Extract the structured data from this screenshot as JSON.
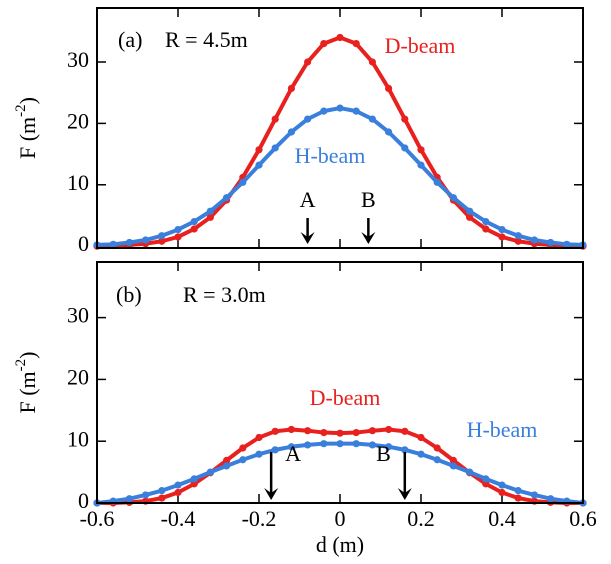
{
  "chart_data": [
    {
      "type": "line",
      "panel": "(a)",
      "annotation": "R = 4.5m",
      "x": [
        -0.6,
        -0.56,
        -0.52,
        -0.48,
        -0.44,
        -0.4,
        -0.36,
        -0.32,
        -0.28,
        -0.24,
        -0.2,
        -0.16,
        -0.12,
        -0.08,
        -0.04,
        0,
        0.04,
        0.08,
        0.12,
        0.16,
        0.2,
        0.24,
        0.28,
        0.32,
        0.36,
        0.4,
        0.44,
        0.48,
        0.52,
        0.56,
        0.6
      ],
      "series": [
        {
          "name": "D-beam",
          "color": "#e8201e",
          "values": [
            0.0,
            0.1,
            0.2,
            0.4,
            0.8,
            1.5,
            2.8,
            4.7,
            7.5,
            11.2,
            15.7,
            20.7,
            25.7,
            30.0,
            33.0,
            34.0,
            33.0,
            30.0,
            25.7,
            20.7,
            15.7,
            11.2,
            7.5,
            4.7,
            2.8,
            1.5,
            0.8,
            0.4,
            0.2,
            0.1,
            0.0
          ]
        },
        {
          "name": "H-beam",
          "color": "#3a7fdc",
          "values": [
            0.2,
            0.3,
            0.6,
            1.0,
            1.7,
            2.7,
            4.0,
            5.7,
            7.9,
            10.4,
            13.2,
            16.0,
            18.6,
            20.7,
            22.0,
            22.5,
            22.0,
            20.7,
            18.6,
            16.0,
            13.2,
            10.4,
            7.9,
            5.7,
            4.0,
            2.7,
            1.7,
            1.0,
            0.6,
            0.3,
            0.2
          ]
        }
      ],
      "markers": [
        {
          "label": "A",
          "x": -0.08
        },
        {
          "label": "B",
          "x": 0.07
        }
      ],
      "ylabel": [
        "F (m",
        "-2",
        ")"
      ],
      "xlim": [
        -0.6,
        0.6
      ],
      "xticks": [
        -0.6,
        -0.4,
        -0.2,
        0,
        0.2,
        0.4,
        0.6
      ],
      "ylim": [
        -0.3,
        38.8
      ],
      "yticks": [
        0,
        10,
        20,
        30
      ]
    },
    {
      "type": "line",
      "panel": "(b)",
      "annotation": "R = 3.0m",
      "x": [
        -0.6,
        -0.56,
        -0.52,
        -0.48,
        -0.44,
        -0.4,
        -0.36,
        -0.32,
        -0.28,
        -0.24,
        -0.2,
        -0.16,
        -0.12,
        -0.08,
        -0.04,
        0,
        0.04,
        0.08,
        0.12,
        0.16,
        0.2,
        0.24,
        0.28,
        0.32,
        0.36,
        0.4,
        0.44,
        0.48,
        0.52,
        0.56,
        0.6
      ],
      "series": [
        {
          "name": "D-beam",
          "color": "#e8201e",
          "values": [
            0.0,
            0.0,
            0.1,
            0.3,
            0.8,
            1.7,
            3.1,
            4.9,
            6.9,
            8.9,
            10.6,
            11.6,
            11.9,
            11.7,
            11.4,
            11.3,
            11.4,
            11.7,
            11.9,
            11.6,
            10.6,
            8.9,
            6.9,
            4.9,
            3.1,
            1.7,
            0.8,
            0.3,
            0.1,
            0.0,
            0.0
          ]
        },
        {
          "name": "H-beam",
          "color": "#3a7fdc",
          "values": [
            0.0,
            0.3,
            0.7,
            1.3,
            2.0,
            2.9,
            3.9,
            5.0,
            6.0,
            7.0,
            7.9,
            8.6,
            9.1,
            9.4,
            9.6,
            9.6,
            9.6,
            9.4,
            9.1,
            8.6,
            7.9,
            7.0,
            6.0,
            5.0,
            3.9,
            2.9,
            2.0,
            1.3,
            0.7,
            0.3,
            0.0
          ]
        }
      ],
      "markers": [
        {
          "label": "A",
          "x": -0.17
        },
        {
          "label": "B",
          "x": 0.16
        }
      ],
      "ylabel": [
        "F (m",
        "-2",
        ")"
      ],
      "xlabel": "d (m)",
      "xlim": [
        -0.6,
        0.6
      ],
      "xticks": [
        -0.6,
        -0.4,
        -0.2,
        0,
        0.2,
        0.4,
        0.6
      ],
      "ylim": [
        0,
        39
      ],
      "yticks": [
        0,
        10,
        20,
        30
      ]
    }
  ]
}
